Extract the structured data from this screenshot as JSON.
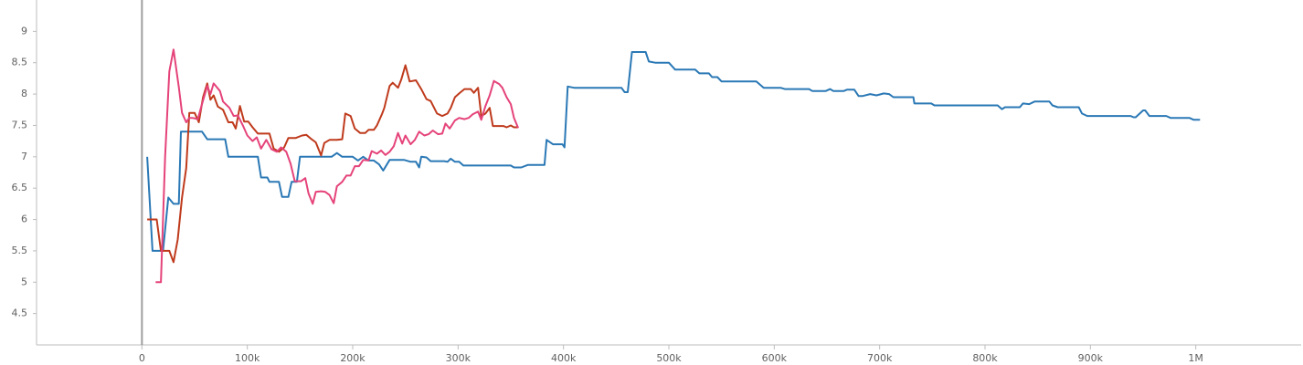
{
  "chart_data": {
    "type": "line",
    "xlim": [
      -100000,
      1100000
    ],
    "ylim": [
      4,
      9.5
    ],
    "xticks": [
      0,
      {
        "value": 100000,
        "label": "100k"
      },
      {
        "value": 200000,
        "label": "200k"
      },
      {
        "value": 300000,
        "label": "300k"
      },
      {
        "value": 400000,
        "label": "400k"
      },
      {
        "value": 500000,
        "label": "500k"
      },
      {
        "value": 600000,
        "label": "600k"
      },
      {
        "value": 700000,
        "label": "700k"
      },
      {
        "value": 800000,
        "label": "800k"
      },
      {
        "value": 900000,
        "label": "900k"
      },
      {
        "value": 1000000,
        "label": "1M"
      }
    ],
    "yticks": [
      4.5,
      5,
      5.5,
      6,
      6.5,
      7,
      7.5,
      8,
      8.5,
      9
    ],
    "series": [
      {
        "color": "#2a78b5",
        "x": [
          5000,
          10000,
          20000,
          25000,
          30000,
          35000,
          37000,
          57000,
          62000,
          79000,
          82000,
          110000,
          113000,
          119000,
          121000,
          130000,
          133000,
          139000,
          142000,
          147000,
          150000,
          180000,
          185000,
          190000,
          200000,
          205000,
          210000,
          215000,
          220000,
          225000,
          229000,
          235000,
          249000,
          255000,
          260000,
          263000,
          265000,
          270000,
          274000,
          287000,
          290000,
          293000,
          297000,
          301000,
          305000,
          350000,
          353000,
          360000,
          366000,
          382000,
          384000,
          390000,
          399000,
          401000,
          404000,
          410000,
          455000,
          458000,
          461000,
          465000,
          478000,
          481000,
          487000,
          500000,
          506000,
          525000,
          529000,
          538000,
          541000,
          546000,
          550000,
          583000,
          590000,
          606000,
          610000,
          633000,
          636000,
          649000,
          653000,
          656000,
          666000,
          669000,
          676000,
          680000,
          684000,
          691000,
          697000,
          704000,
          709000,
          713000,
          732000,
          733000,
          749000,
          752000,
          812000,
          816000,
          819000,
          833000,
          836000,
          842000,
          847000,
          861000,
          864000,
          869000,
          889000,
          892000,
          897000,
          938000,
          941000,
          943000,
          950000,
          952000,
          956000,
          972000,
          976000,
          994000,
          998000,
          1004000
        ],
        "values": [
          7.0,
          5.5,
          5.5,
          6.35,
          6.25,
          6.25,
          7.4,
          7.4,
          7.28,
          7.28,
          7.0,
          7.0,
          6.67,
          6.67,
          6.6,
          6.6,
          6.36,
          6.36,
          6.6,
          6.6,
          7.0,
          7.0,
          7.06,
          7.0,
          7.0,
          6.94,
          7.0,
          6.94,
          6.94,
          6.88,
          6.78,
          6.95,
          6.95,
          6.92,
          6.92,
          6.83,
          7.0,
          6.99,
          6.93,
          6.93,
          6.92,
          6.97,
          6.92,
          6.92,
          6.86,
          6.86,
          6.83,
          6.83,
          6.87,
          6.87,
          7.27,
          7.2,
          7.2,
          7.15,
          8.12,
          8.1,
          8.1,
          8.03,
          8.03,
          8.67,
          8.67,
          8.52,
          8.5,
          8.5,
          8.39,
          8.39,
          8.33,
          8.33,
          8.27,
          8.27,
          8.2,
          8.2,
          8.1,
          8.1,
          8.08,
          8.08,
          8.05,
          8.05,
          8.08,
          8.05,
          8.05,
          8.07,
          8.07,
          7.97,
          7.97,
          8.0,
          7.98,
          8.01,
          8.0,
          7.95,
          7.95,
          7.85,
          7.85,
          7.82,
          7.82,
          7.76,
          7.79,
          7.79,
          7.85,
          7.84,
          7.88,
          7.88,
          7.82,
          7.79,
          7.79,
          7.69,
          7.65,
          7.65,
          7.63,
          7.63,
          7.74,
          7.74,
          7.65,
          7.65,
          7.62,
          7.62,
          7.59,
          7.59
        ]
      },
      {
        "color": "#bf3a1c",
        "x": [
          5000,
          14000,
          18000,
          26000,
          30000,
          34000,
          38000,
          42000,
          45000,
          50000,
          54000,
          58000,
          62000,
          65000,
          68000,
          72000,
          77000,
          82000,
          86000,
          89000,
          93000,
          97000,
          101000,
          105000,
          110000,
          118000,
          121000,
          125000,
          130000,
          135000,
          139000,
          146000,
          152000,
          156000,
          161000,
          165000,
          170000,
          173000,
          178000,
          185000,
          190000,
          193000,
          198000,
          202000,
          207000,
          212000,
          215000,
          220000,
          223000,
          228000,
          230000,
          235000,
          238000,
          243000,
          246000,
          250000,
          254000,
          260000,
          265000,
          270000,
          274000,
          280000,
          285000,
          290000,
          293000,
          297000,
          301000,
          306000,
          312000,
          315000,
          319000,
          322000,
          326000,
          330000,
          333000,
          343000,
          346000,
          350000,
          353000,
          357000
        ],
        "values": [
          6.0,
          6.0,
          5.5,
          5.5,
          5.32,
          5.68,
          6.35,
          6.82,
          7.7,
          7.7,
          7.55,
          7.95,
          8.17,
          7.91,
          7.98,
          7.8,
          7.75,
          7.55,
          7.55,
          7.45,
          7.81,
          7.56,
          7.56,
          7.47,
          7.37,
          7.37,
          7.37,
          7.13,
          7.08,
          7.15,
          7.3,
          7.3,
          7.34,
          7.35,
          7.28,
          7.23,
          7.02,
          7.22,
          7.27,
          7.27,
          7.28,
          7.69,
          7.65,
          7.45,
          7.38,
          7.38,
          7.43,
          7.43,
          7.5,
          7.69,
          7.78,
          8.13,
          8.18,
          8.1,
          8.23,
          8.46,
          8.2,
          8.22,
          8.08,
          7.92,
          7.89,
          7.69,
          7.65,
          7.69,
          7.78,
          7.95,
          8.01,
          8.08,
          8.08,
          8.02,
          8.1,
          7.65,
          7.69,
          7.78,
          7.49,
          7.49,
          7.47,
          7.5,
          7.47,
          7.47
        ]
      },
      {
        "color": "#e5437a",
        "x": [
          13000,
          18000,
          22000,
          26000,
          30000,
          35000,
          38000,
          42000,
          45000,
          48000,
          53000,
          56000,
          62000,
          65000,
          68000,
          74000,
          77000,
          83000,
          87000,
          91000,
          96000,
          100000,
          105000,
          109000,
          113000,
          118000,
          123000,
          128000,
          132000,
          137000,
          141000,
          145000,
          151000,
          155000,
          158000,
          162000,
          165000,
          170000,
          174000,
          178000,
          182000,
          185000,
          190000,
          194000,
          198000,
          202000,
          206000,
          210000,
          215000,
          218000,
          223000,
          227000,
          231000,
          235000,
          239000,
          243000,
          247000,
          250000,
          255000,
          259000,
          263000,
          268000,
          272000,
          276000,
          281000,
          285000,
          288000,
          292000,
          297000,
          301000,
          306000,
          310000,
          314000,
          319000,
          322000,
          326000,
          330000,
          334000,
          339000,
          342000,
          346000,
          350000,
          353000,
          357000
        ],
        "values": [
          5.0,
          5.0,
          7.0,
          8.36,
          8.71,
          8.11,
          7.7,
          7.55,
          7.62,
          7.62,
          7.6,
          7.78,
          8.13,
          8.0,
          8.17,
          8.05,
          7.88,
          7.78,
          7.65,
          7.66,
          7.49,
          7.34,
          7.25,
          7.31,
          7.13,
          7.27,
          7.12,
          7.08,
          7.15,
          7.08,
          6.89,
          6.61,
          6.61,
          6.66,
          6.42,
          6.25,
          6.44,
          6.45,
          6.44,
          6.39,
          6.26,
          6.53,
          6.6,
          6.7,
          6.7,
          6.85,
          6.85,
          6.95,
          6.94,
          7.09,
          7.05,
          7.1,
          7.03,
          7.08,
          7.17,
          7.38,
          7.21,
          7.34,
          7.2,
          7.27,
          7.4,
          7.34,
          7.36,
          7.42,
          7.36,
          7.37,
          7.53,
          7.45,
          7.58,
          7.62,
          7.6,
          7.62,
          7.68,
          7.72,
          7.59,
          7.81,
          7.98,
          8.21,
          8.16,
          8.1,
          7.95,
          7.84,
          7.62,
          7.46
        ]
      }
    ]
  }
}
